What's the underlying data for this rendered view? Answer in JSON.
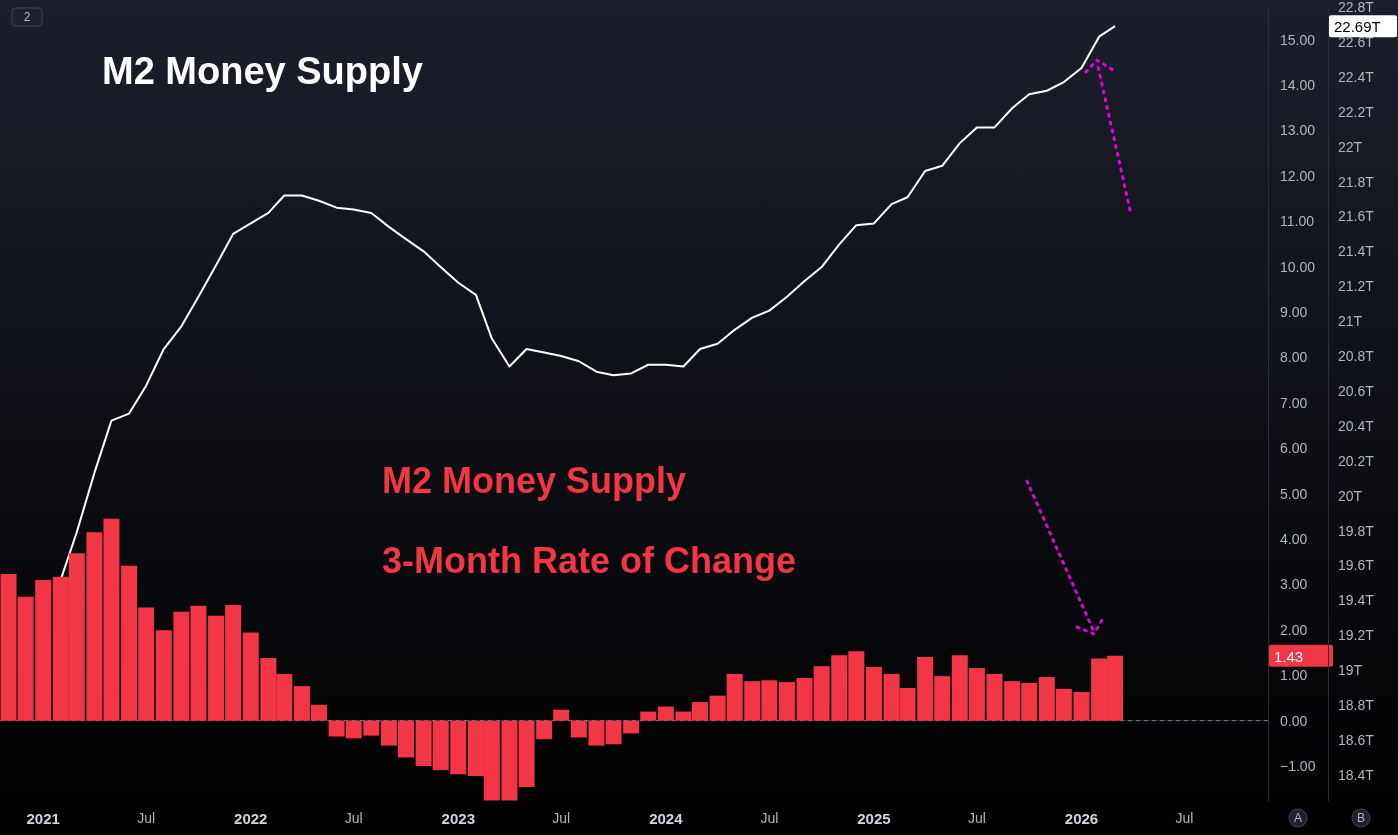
{
  "chart_data": {
    "type": "bar",
    "title": "M2 Money Supply",
    "x": [
      "2020-11",
      "2020-12",
      "2021-01",
      "2021-02",
      "2021-03",
      "2021-04",
      "2021-05",
      "2021-06",
      "2021-07",
      "2021-08",
      "2021-09",
      "2021-10",
      "2021-11",
      "2021-12",
      "2022-01",
      "2022-02",
      "2022-03",
      "2022-04",
      "2022-05",
      "2022-06",
      "2022-07",
      "2022-08",
      "2022-09",
      "2022-10",
      "2022-11",
      "2022-12",
      "2023-01",
      "2023-02",
      "2023-03",
      "2023-04",
      "2023-05",
      "2023-06",
      "2023-07",
      "2023-08",
      "2023-09",
      "2023-10",
      "2023-11",
      "2023-12",
      "2024-01",
      "2024-02",
      "2024-03",
      "2024-04",
      "2024-05",
      "2024-06",
      "2024-07",
      "2024-08",
      "2024-09",
      "2024-10",
      "2024-11",
      "2024-12",
      "2025-01",
      "2025-02",
      "2025-03",
      "2025-04",
      "2025-05",
      "2025-06",
      "2025-07",
      "2025-08",
      "2025-09",
      "2025-10",
      "2025-11",
      "2025-12",
      "2026-01",
      "2026-02",
      "2026-03"
    ],
    "series": [
      {
        "type": "line",
        "axis": "y2",
        "color": "#ffffff",
        "values": [
          null,
          null,
          null,
          19.52,
          19.79,
          20.13,
          20.43,
          20.47,
          20.63,
          20.84,
          20.97,
          21.14,
          21.32,
          21.5,
          21.56,
          21.62,
          21.72,
          21.72,
          21.69,
          21.65,
          21.64,
          21.62,
          21.54,
          21.47,
          21.4,
          21.31,
          21.22,
          21.15,
          20.9,
          20.74,
          20.84,
          20.82,
          20.8,
          20.77,
          20.71,
          20.69,
          20.7,
          20.75,
          20.75,
          20.74,
          20.84,
          20.87,
          20.95,
          21.02,
          21.06,
          21.14,
          21.23,
          21.31,
          21.44,
          21.55,
          21.56,
          21.67,
          21.71,
          21.86,
          21.89,
          22.02,
          22.11,
          22.11,
          22.22,
          22.3,
          22.32,
          22.37,
          22.45,
          22.63,
          22.69
        ]
      },
      {
        "name": "M2 Money Supply 3-Month Rate of Change",
        "color": "#f23645",
        "values": [
          3.23,
          2.73,
          3.1,
          3.17,
          3.69,
          4.15,
          4.45,
          3.41,
          2.49,
          1.99,
          2.4,
          2.53,
          2.31,
          2.55,
          1.94,
          1.38,
          1.03,
          0.76,
          0.35,
          -0.35,
          -0.39,
          -0.33,
          -0.55,
          -0.81,
          -1.0,
          -1.09,
          -1.18,
          -1.22,
          -1.76,
          -1.76,
          -1.46,
          -0.41,
          0.24,
          -0.37,
          -0.55,
          -0.52,
          -0.28,
          0.2,
          0.31,
          0.2,
          0.41,
          0.55,
          1.03,
          0.87,
          0.89,
          0.85,
          0.94,
          1.2,
          1.44,
          1.53,
          1.18,
          1.03,
          0.72,
          1.4,
          0.98,
          1.44,
          1.16,
          1.03,
          0.87,
          0.83,
          0.96,
          0.7,
          0.63,
          1.37,
          1.43
        ]
      }
    ],
    "xlim": [
      "2020-10-17",
      "2026-11-25"
    ],
    "xticks": [
      "2021",
      {
        "value": "2021-07",
        "label": "Jul"
      },
      "2022",
      {
        "value": "2022-07",
        "label": "Jul"
      },
      "2023",
      {
        "value": "2023-07",
        "label": "Jul"
      },
      "2024",
      {
        "value": "2024-07",
        "label": "Jul"
      },
      "2025",
      {
        "value": "2025-07",
        "label": "Jul"
      },
      "2026",
      {
        "value": "2026-07",
        "label": "Jul"
      }
    ],
    "ylim": [
      -1.77,
      15.72
    ],
    "yticks": [
      {
        "value": -1,
        "label": "−1.00"
      },
      {
        "value": 0,
        "label": "0.00"
      },
      {
        "value": 1,
        "label": "1.00"
      },
      {
        "value": 2,
        "label": "2.00"
      },
      {
        "value": 3,
        "label": "3.00"
      },
      {
        "value": 4,
        "label": "4.00"
      },
      {
        "value": 5,
        "label": "5.00"
      },
      {
        "value": 6,
        "label": "6.00"
      },
      {
        "value": 7,
        "label": "7.00"
      },
      {
        "value": 8,
        "label": "8.00"
      },
      {
        "value": 9,
        "label": "9.00"
      },
      {
        "value": 10,
        "label": "10.00"
      },
      {
        "value": 11,
        "label": "11.00"
      },
      {
        "value": 12,
        "label": "12.00"
      },
      {
        "value": 13,
        "label": "13.00"
      },
      {
        "value": 14,
        "label": "14.00"
      },
      {
        "value": 15,
        "label": "15.00"
      }
    ],
    "y2lim": [
      18.25,
      22.8
    ],
    "y2ticks": [
      {
        "value": 18.4,
        "label": "18.4T"
      },
      {
        "value": 18.6,
        "label": "18.6T"
      },
      {
        "value": 18.8,
        "label": "18.8T"
      },
      {
        "value": 19,
        "label": "19T"
      },
      {
        "value": 19.2,
        "label": "19.2T"
      },
      {
        "value": 19.4,
        "label": "19.4T"
      },
      {
        "value": 19.6,
        "label": "19.6T"
      },
      {
        "value": 19.8,
        "label": "19.8T"
      },
      {
        "value": 20,
        "label": "20T"
      },
      {
        "value": 20.2,
        "label": "20.2T"
      },
      {
        "value": 20.4,
        "label": "20.4T"
      },
      {
        "value": 20.6,
        "label": "20.6T"
      },
      {
        "value": 20.8,
        "label": "20.8T"
      },
      {
        "value": 21,
        "label": "21T"
      },
      {
        "value": 21.2,
        "label": "21.2T"
      },
      {
        "value": 21.4,
        "label": "21.4T"
      },
      {
        "value": 21.6,
        "label": "21.6T"
      },
      {
        "value": 21.8,
        "label": "21.8T"
      },
      {
        "value": 22,
        "label": "22T"
      },
      {
        "value": 22.2,
        "label": "22.2T"
      },
      {
        "value": 22.4,
        "label": "22.4T"
      },
      {
        "value": 22.6,
        "label": "22.6T"
      },
      {
        "value": 22.8,
        "label": "22.8T"
      }
    ],
    "ref_lines": [
      {
        "axis": "y",
        "value": 0,
        "color": "#787b86",
        "line_style": "dashed"
      }
    ],
    "annotations": [
      "22.69T",
      "1.43",
      "2",
      "A",
      "B"
    ]
  }
}
